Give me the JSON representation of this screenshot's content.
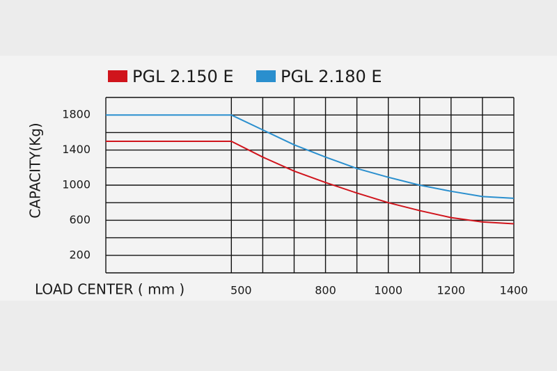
{
  "chart_data": {
    "type": "line",
    "y_label": "CAPACITY(Kg)",
    "x_label": "LOAD CENTER ( mm )",
    "x": [
      100,
      500,
      600,
      700,
      800,
      900,
      1000,
      1100,
      1200,
      1300,
      1400
    ],
    "series": [
      {
        "name": "PGL 2.150 E",
        "color": "#d0141c",
        "values": [
          1500,
          1500,
          1320,
          1160,
          1030,
          910,
          800,
          710,
          630,
          580,
          560
        ]
      },
      {
        "name": "PGL 2.180 E",
        "color": "#2a8fce",
        "values": [
          1800,
          1800,
          1630,
          1460,
          1320,
          1190,
          1090,
          1000,
          930,
          870,
          850
        ]
      }
    ],
    "xlim": [
      100,
      1400
    ],
    "ylim": [
      0,
      2000
    ],
    "xticks": [
      500,
      800,
      1000,
      1200,
      1400
    ],
    "yticks": [
      200,
      600,
      1000,
      1400,
      1800
    ],
    "x_grid": [
      500,
      600,
      700,
      800,
      900,
      1000,
      1100,
      1200,
      1300,
      1400
    ],
    "y_grid": [
      0,
      200,
      400,
      600,
      800,
      1000,
      1200,
      1400,
      1600,
      1800,
      2000
    ],
    "grid": true,
    "legend": "top"
  }
}
